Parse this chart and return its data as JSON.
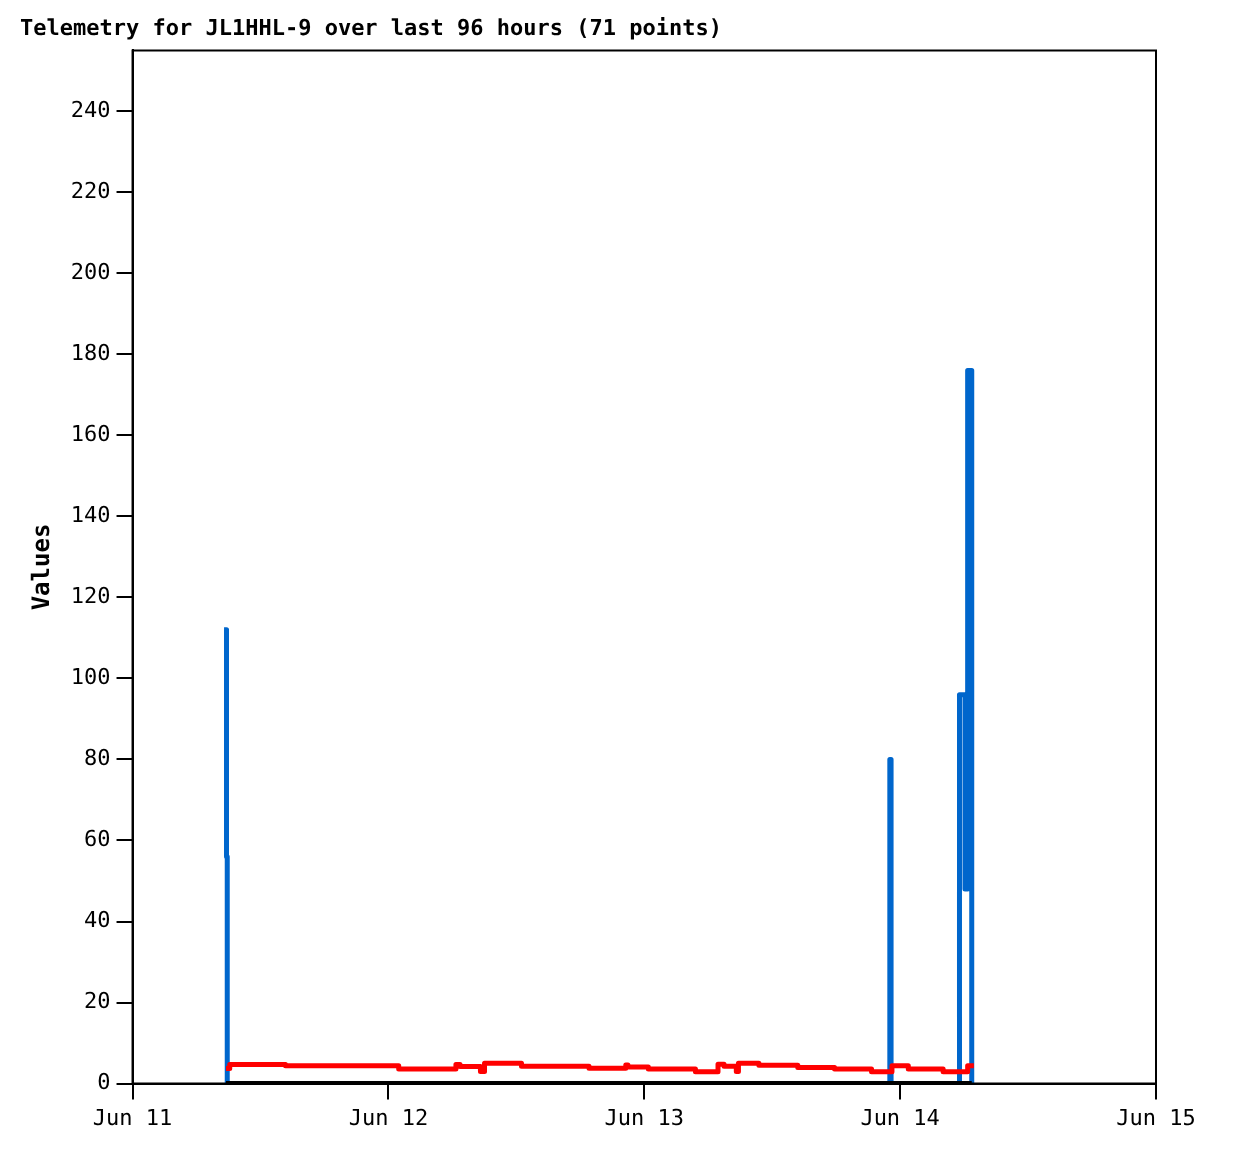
{
  "chart_data": {
    "type": "step",
    "title": "Telemetry for JL1HHL-9 over last 96 hours (71 points)",
    "ylabel": "Values",
    "xlim": [
      "--06-11",
      "--06-15"
    ],
    "xticks": [
      {
        "value": "--06-11",
        "label": "Jun 11"
      },
      {
        "value": "--06-12",
        "label": "Jun 12"
      },
      {
        "value": "--06-13",
        "label": "Jun 13"
      },
      {
        "value": "--06-14",
        "label": "Jun 14"
      },
      {
        "value": "--06-15",
        "label": "Jun 15"
      }
    ],
    "ylim": [
      0,
      255
    ],
    "yticks": [
      0,
      20,
      40,
      60,
      80,
      100,
      120,
      140,
      160,
      180,
      200,
      220,
      240
    ],
    "grid": false,
    "legend": false,
    "series": [
      {
        "color": "#0066cc",
        "x": [
          "--06-11T08:35",
          "--06-11T08:49",
          "--06-11T08:53",
          "--06-13T23:02",
          "--06-13T23:09",
          "--06-14T05:34",
          "--06-14T06:05",
          "--06-14T06:20",
          "--06-14T06:43"
        ],
        "values": [
          112,
          56,
          0,
          80,
          0,
          96,
          48,
          176,
          0
        ]
      },
      {
        "color": "#ff0000",
        "x": [
          "--06-11T08:46",
          "--06-11T09:07",
          "--06-11T14:21",
          "--06-12T00:58",
          "--06-12T06:20",
          "--06-12T06:43",
          "--06-12T08:38",
          "--06-12T09:01",
          "--06-12T12:29",
          "--06-12T18:49",
          "--06-12T22:16",
          "--06-12T22:28",
          "--06-13T00:23",
          "--06-13T04:48",
          "--06-13T06:55",
          "--06-13T07:29",
          "--06-13T08:38",
          "--06-13T08:50",
          "--06-13T10:45",
          "--06-13T14:24",
          "--06-13T17:51",
          "--06-13T21:19",
          "--06-13T23:14",
          "--06-14T00:46",
          "--06-14T04:02",
          "--06-14T06:20",
          "--06-14T06:55"
        ],
        "values": [
          3.7,
          4.7,
          4.4,
          3.6,
          4.7,
          4.2,
          3.0,
          5.0,
          4.3,
          3.8,
          4.6,
          4.1,
          3.6,
          2.9,
          4.8,
          4.3,
          3.0,
          5.0,
          4.5,
          4.0,
          3.6,
          2.9,
          4.4,
          3.6,
          2.9,
          4.4,
          4.4
        ]
      },
      {
        "color": "#000000",
        "x": [
          "--06-11T08:46",
          "--06-14T06:43"
        ],
        "values": [
          0,
          0
        ]
      }
    ]
  }
}
